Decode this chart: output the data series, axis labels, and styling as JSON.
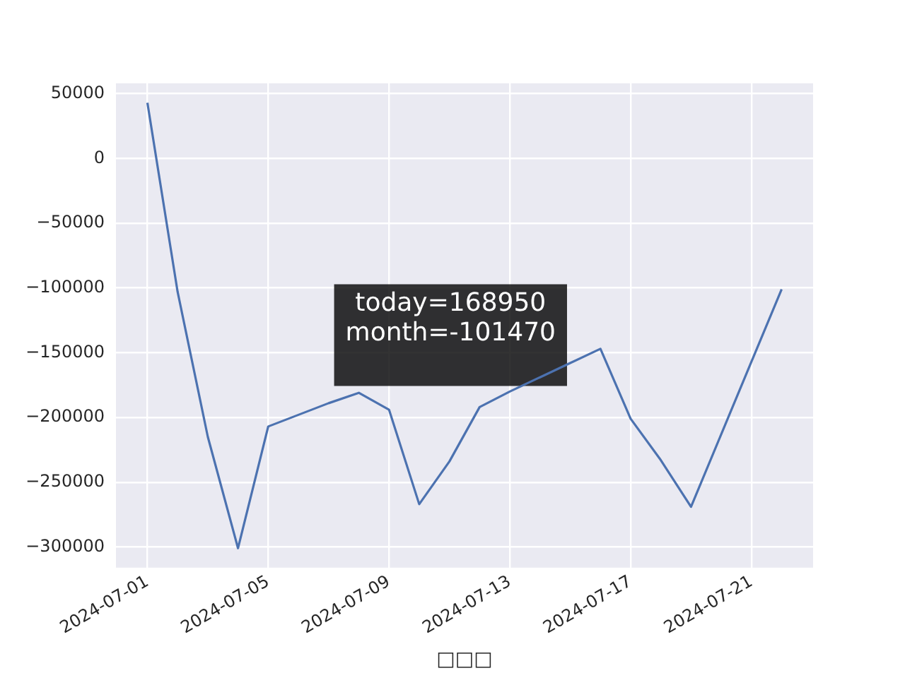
{
  "chart_data": {
    "type": "line",
    "xlabel": "□□□",
    "x": [
      "2024-07-01",
      "2024-07-02",
      "2024-07-03",
      "2024-07-04",
      "2024-07-05",
      "2024-07-06",
      "2024-07-07",
      "2024-07-08",
      "2024-07-09",
      "2024-07-10",
      "2024-07-11",
      "2024-07-12",
      "2024-07-13",
      "2024-07-14",
      "2024-07-15",
      "2024-07-16",
      "2024-07-17",
      "2024-07-18",
      "2024-07-19",
      "2024-07-20",
      "2024-07-21",
      "2024-07-22"
    ],
    "series": [
      {
        "color": "#4c72b0",
        "values": [
          43000,
          -103000,
          -215000,
          -301000,
          -207000,
          -198000,
          -189000,
          -181000,
          -194000,
          -267000,
          -234000,
          -192000,
          -180000,
          -169000,
          -158000,
          -147000,
          -201000,
          -233000,
          -269000,
          -213000,
          -157000,
          -101000
        ]
      }
    ],
    "xlim": [
      "2024-06-29T23:00",
      "2024-07-23T01:00"
    ],
    "xticks": [
      "2024-07-01",
      "2024-07-05",
      "2024-07-09",
      "2024-07-13",
      "2024-07-17",
      "2024-07-21"
    ],
    "ylim": [
      -316000,
      58000
    ],
    "yticks": [
      -300000,
      -250000,
      -200000,
      -150000,
      -100000,
      -50000,
      0,
      50000
    ],
    "grid": true,
    "legend": false,
    "marker": "none",
    "line_style": "solid",
    "annotations": [
      "today=168950\nmonth=-101470"
    ]
  }
}
